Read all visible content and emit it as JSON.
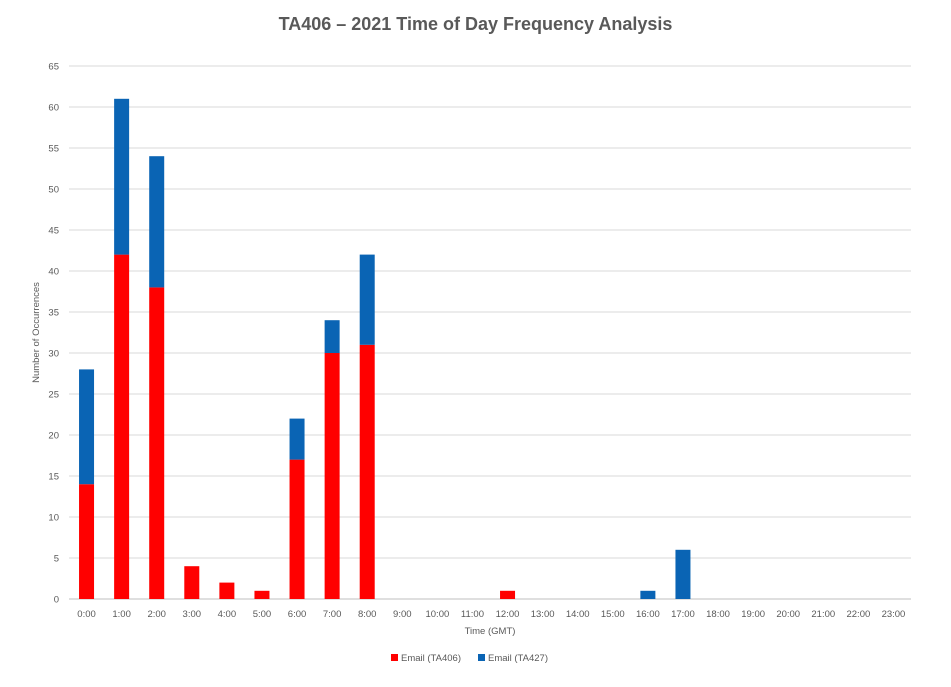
{
  "chart_data": {
    "type": "bar",
    "stacked": true,
    "title": "TA406 – 2021 Time of Day Frequency Analysis",
    "xlabel": "Time (GMT)",
    "ylabel": "Number of Occurrences",
    "ylim": [
      0,
      65
    ],
    "yticks": [
      0,
      5,
      10,
      15,
      20,
      25,
      30,
      35,
      40,
      45,
      50,
      55,
      60,
      65
    ],
    "grid": true,
    "legend_position": "bottom",
    "categories": [
      "0:00",
      "1:00",
      "2:00",
      "3:00",
      "4:00",
      "5:00",
      "6:00",
      "7:00",
      "8:00",
      "9:00",
      "10:00",
      "11:00",
      "12:00",
      "13:00",
      "14:00",
      "15:00",
      "16:00",
      "17:00",
      "18:00",
      "19:00",
      "20:00",
      "21:00",
      "22:00",
      "23:00"
    ],
    "series": [
      {
        "name": "Email (TA406)",
        "color": "#ff0000",
        "values": [
          14,
          42,
          38,
          4,
          2,
          1,
          17,
          30,
          31,
          0,
          0,
          0,
          1,
          0,
          0,
          0,
          0,
          0,
          0,
          0,
          0,
          0,
          0,
          0
        ]
      },
      {
        "name": "Email (TA427)",
        "color": "#0a64b4",
        "values": [
          14,
          19,
          16,
          0,
          0,
          0,
          5,
          4,
          11,
          0,
          0,
          0,
          0,
          0,
          0,
          0,
          1,
          6,
          0,
          0,
          0,
          0,
          0,
          0
        ]
      }
    ]
  }
}
